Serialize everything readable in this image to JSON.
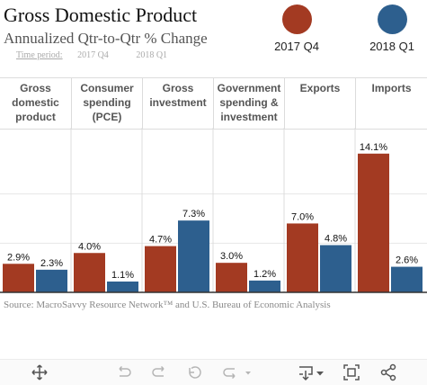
{
  "title": "Gross Domestic Product",
  "subtitle": "Annualized Qtr-to-Qtr % Change",
  "time_period": {
    "label": "Time period:",
    "options": [
      "2017 Q4",
      "2018 Q1"
    ]
  },
  "colors": {
    "series_2017q4": "#a33a22",
    "series_2018q1": "#2d5f8e"
  },
  "legend": [
    {
      "label": "2017 Q4",
      "color": "#a33a22"
    },
    {
      "label": "2018 Q1",
      "color": "#2d5f8e"
    }
  ],
  "chart_data": {
    "type": "bar",
    "categories": [
      "Gross domestic product",
      "Consumer spending (PCE)",
      "Gross investment",
      "Government spending & investment",
      "Exports",
      "Imports"
    ],
    "category_headers": [
      [
        "Gross",
        "domestic",
        "product"
      ],
      [
        "Consumer",
        "spending",
        "(PCE)"
      ],
      [
        "Gross",
        "investment"
      ],
      [
        "Government",
        "spending &",
        "investment"
      ],
      [
        "Exports"
      ],
      [
        "Imports"
      ]
    ],
    "series": [
      {
        "name": "2017 Q4",
        "values": [
          2.9,
          4.0,
          4.7,
          3.0,
          7.0,
          14.1
        ],
        "labels": [
          "2.9%",
          "4.0%",
          "4.7%",
          "3.0%",
          "7.0%",
          "14.1%"
        ]
      },
      {
        "name": "2018 Q1",
        "values": [
          2.3,
          1.1,
          7.3,
          1.2,
          4.8,
          2.6
        ],
        "labels": [
          "2.3%",
          "1.1%",
          "7.3%",
          "1.2%",
          "4.8%",
          "2.6%"
        ]
      }
    ],
    "ylim": [
      0,
      16
    ],
    "grid": true,
    "legend_position": "top-right"
  },
  "source": "Source: MacroSavvy Resource Network™ and U.S. Bureau of Economic Analysis",
  "toolbar": {
    "icons": [
      "move-icon",
      "undo-icon",
      "redo-icon",
      "revert-icon",
      "refresh-icon",
      "download-icon",
      "fullscreen-icon",
      "share-icon"
    ]
  }
}
